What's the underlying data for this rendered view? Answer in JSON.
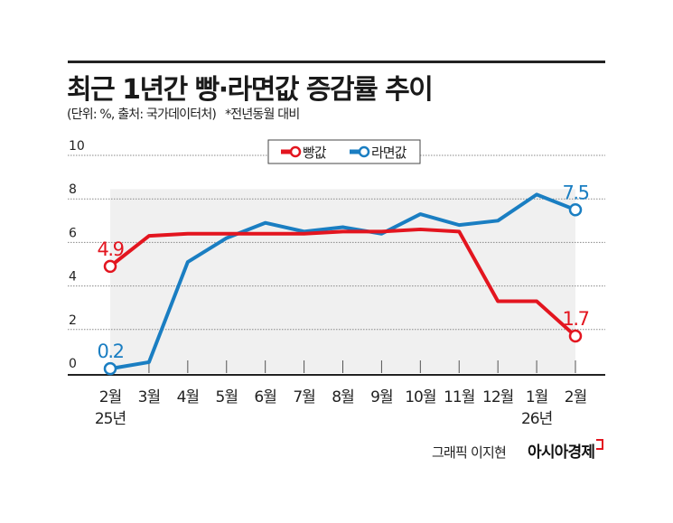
{
  "title": "최근 1년간 빵·라면값 증감률 추이",
  "subtitle": "(단위: %, 출처: 국가데이터처)",
  "note": "*전년동월 대비",
  "credit": "그래픽 이지현",
  "logo": "아시아경제",
  "chart_data": {
    "type": "line",
    "title": "최근 1년간 빵·라면값 증감률 추이",
    "categories": [
      "2월",
      "3월",
      "4월",
      "5월",
      "6월",
      "7월",
      "8월",
      "9월",
      "10월",
      "11월",
      "12월",
      "1월",
      "2월"
    ],
    "year_labels": {
      "0": "25년",
      "11": "26년"
    },
    "ylim": [
      0,
      10
    ],
    "yticks": [
      0,
      2,
      4,
      6,
      8,
      10
    ],
    "grid": true,
    "legend": "top-center",
    "series": [
      {
        "name": "빵값",
        "color": "#e3151f",
        "values": [
          4.9,
          6.3,
          6.4,
          6.4,
          6.4,
          6.4,
          6.5,
          6.5,
          6.6,
          6.5,
          3.3,
          3.3,
          1.7
        ],
        "labels": {
          "0": "4.9",
          "12": "1.7"
        }
      },
      {
        "name": "라면값",
        "color": "#1a7ec2",
        "values": [
          0.2,
          0.5,
          5.1,
          6.2,
          6.9,
          6.5,
          6.7,
          6.4,
          7.3,
          6.8,
          7.0,
          8.2,
          7.5
        ],
        "labels": {
          "0": "0.2",
          "12": "7.5"
        }
      }
    ]
  }
}
